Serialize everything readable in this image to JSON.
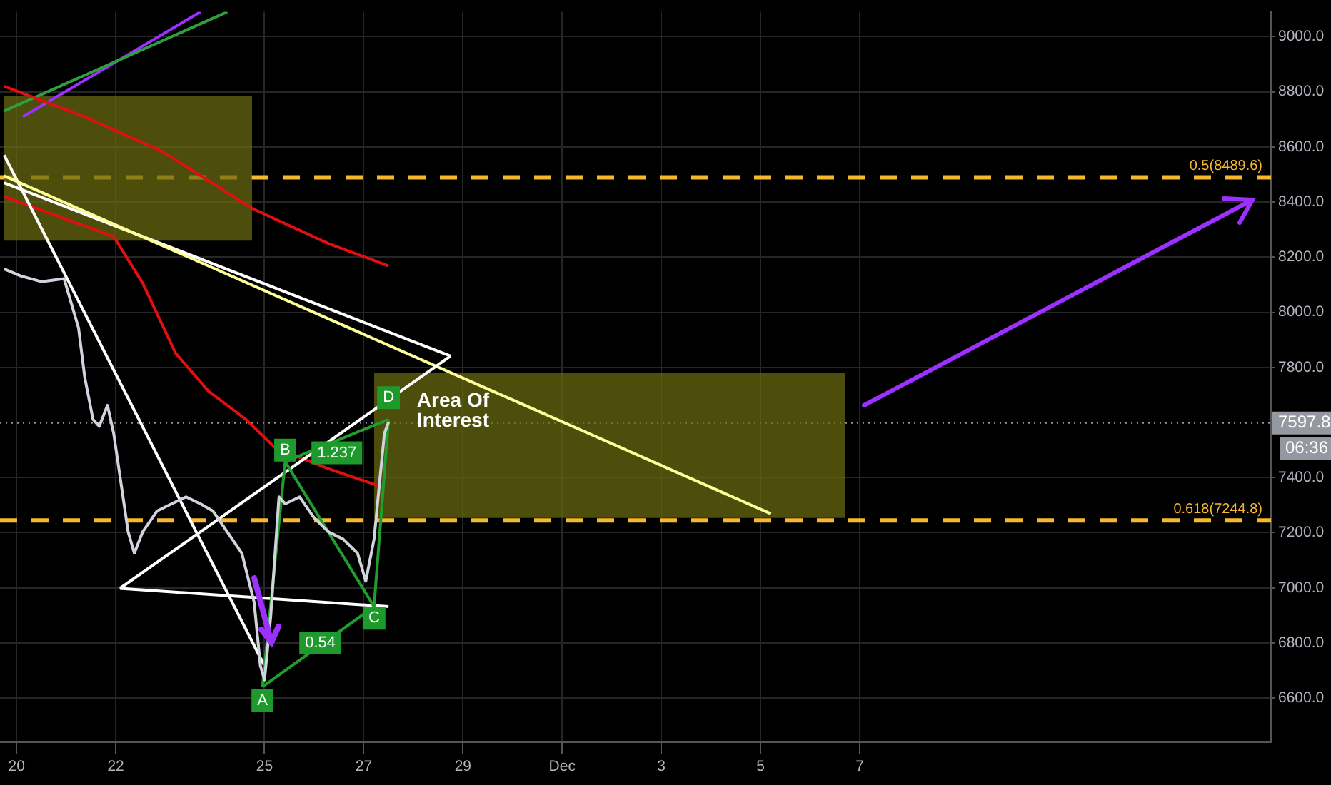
{
  "chart_data": {
    "type": "line",
    "xlim": [
      "--11-19T16:00",
      "--12-15T07:00"
    ],
    "xticks": [
      {
        "value": "--11-20",
        "label": "20"
      },
      {
        "value": "--11-22",
        "label": "22"
      },
      {
        "value": "--11-25",
        "label": "25"
      },
      {
        "value": "--11-27",
        "label": "27"
      },
      {
        "value": "--11-29",
        "label": "29"
      },
      {
        "value": "--12-01",
        "label": "Dec"
      },
      {
        "value": "--12-03",
        "label": "3"
      },
      {
        "value": "--12-05",
        "label": "5"
      },
      {
        "value": "--12-07",
        "label": "7"
      }
    ],
    "ylim": [
      6440,
      9090
    ],
    "yticks": [
      {
        "value": 6600,
        "label": "6600.0"
      },
      {
        "value": 6800,
        "label": "6800.0"
      },
      {
        "value": 7000,
        "label": "7000.0"
      },
      {
        "value": 7200,
        "label": "7200.0"
      },
      {
        "value": 7400,
        "label": "7400.0"
      },
      {
        "value": 7800,
        "label": "7800.0"
      },
      {
        "value": 8000,
        "label": "8000.0"
      },
      {
        "value": 8200,
        "label": "8200.0"
      },
      {
        "value": 8400,
        "label": "8400.0"
      },
      {
        "value": 8600,
        "label": "8600.0"
      },
      {
        "value": 8800,
        "label": "8800.0"
      },
      {
        "value": 9000,
        "label": "9000.0"
      }
    ],
    "grid": true,
    "legend": false,
    "series": [
      {
        "color": "#6b6b10",
        "x": [
          "--11-19T18:00",
          "--11-24T18:00"
        ],
        "values": [
          null,
          null
        ],
        "lower": [
          8260,
          8260
        ],
        "upper": [
          8786,
          8786
        ]
      },
      {
        "color": "#6b6b10",
        "x": [
          "--11-27T05:00",
          "--12-06T17:00"
        ],
        "values": [
          null,
          null
        ],
        "lower": [
          7254,
          7254
        ],
        "upper": [
          7780,
          7780
        ]
      },
      {
        "color": "#9b30ff",
        "x": [
          "--11-20T03:00",
          "--11-23T17:00"
        ],
        "values": [
          8709,
          9090
        ]
      },
      {
        "color": "#2e9e3e",
        "x": [
          "--11-19T18:00",
          "--11-24T06:00"
        ],
        "values": [
          8730,
          9090
        ]
      },
      {
        "color": "#e01010",
        "x": [
          "--11-19T18:00",
          "--11-21T09:00",
          "--11-22T23:00",
          "--11-24T18:00",
          "--11-26T07:00",
          "--11-27T12:00"
        ],
        "values": [
          8820,
          8709,
          8581,
          8377,
          8249,
          8168
        ]
      },
      {
        "color": "#e01010",
        "x": [
          "--11-19T18:00",
          "--11-21T23:00",
          "--11-22T13:00",
          "--11-23T05:00",
          "--11-23T21:00",
          "--11-24T15:00",
          "--11-25T05:00",
          "--11-26T07:00",
          "--11-27T09:00"
        ],
        "values": [
          8420,
          8275,
          8106,
          7851,
          7713,
          7611,
          7509,
          7432,
          7366
        ]
      },
      {
        "color": "#ffffff",
        "x": [
          "--11-19T18:00",
          "--11-25T00:00"
        ],
        "values": [
          8570,
          6717
        ]
      },
      {
        "color": "#ffffff",
        "x": [
          "--11-19T18:00",
          "--11-28T18:00"
        ],
        "values": [
          8470,
          7841
        ]
      },
      {
        "color": "#ffff99",
        "x": [
          "--11-19T18:00",
          "--12-05T05:00"
        ],
        "values": [
          8495,
          7269
        ]
      },
      {
        "color": "#ffffff",
        "x": [
          "--11-22T02:00",
          "--11-28T18:00"
        ],
        "values": [
          6998,
          7841
        ]
      },
      {
        "color": "#ffffff",
        "x": [
          "--11-22T02:00",
          "--11-27T12:00"
        ],
        "values": [
          6998,
          6932
        ]
      },
      {
        "color": "#1f9e2e",
        "x": [
          "--11-24T23:00",
          "--11-25T10:00",
          "--11-27T05:00",
          "--11-27T12:00"
        ],
        "values": [
          6641,
          7458,
          6932,
          7611
        ]
      },
      {
        "color": "#1f9e2e",
        "x": [
          "--11-24T23:00",
          "--11-27T05:00"
        ],
        "values": [
          6641,
          6932
        ]
      },
      {
        "color": "#1f9e2e",
        "x": [
          "--11-25T10:00",
          "--11-27T12:00"
        ],
        "values": [
          7458,
          7611
        ]
      },
      {
        "color": "#d1d4dc",
        "x": [
          "--11-19T18:00",
          "--11-20T02:00",
          "--11-20T12:00",
          "--11-20T23:00",
          "--11-21T02:00",
          "--11-21T06:00",
          "--11-21T09:00",
          "--11-21T13:00",
          "--11-21T16:00",
          "--11-21T20:00",
          "--11-21T23:00",
          "--11-22T02:00",
          "--11-22T06:00",
          "--11-22T09:00",
          "--11-22T13:00",
          "--11-22T20:00",
          "--11-23T03:00",
          "--11-23T10:00",
          "--11-23T17:00",
          "--11-23T23:00",
          "--11-24T06:00",
          "--11-24T13:00",
          "--11-24T19:00",
          "--11-24T22:00",
          "--11-25T00:00",
          "--11-25T03:00",
          "--11-25T07:00",
          "--11-25T10:00",
          "--11-25T17:00",
          "--11-26T00:00",
          "--11-26T07:00",
          "--11-26T14:00",
          "--11-26T21:00",
          "--11-27T01:00",
          "--11-27T05:00",
          "--11-27T08:00",
          "--11-27T10:00",
          "--11-27T12:00"
        ],
        "values": [
          8157,
          8132,
          8111,
          8122,
          8045,
          7943,
          7764,
          7611,
          7586,
          7662,
          7560,
          7407,
          7203,
          7126,
          7203,
          7279,
          7305,
          7330,
          7305,
          7279,
          7203,
          7126,
          6947,
          6717,
          6666,
          6896,
          7330,
          7305,
          7330,
          7254,
          7203,
          7177,
          7126,
          7024,
          7177,
          7407,
          7560,
          7601
        ]
      }
    ],
    "ref_lines": [
      {
        "axis": "y",
        "value": 8489.6,
        "label": "0.5(8489.6)",
        "color": "#f5b82e",
        "line_style": "dashed"
      },
      {
        "axis": "y",
        "value": 7244.8,
        "label": "0.618(7244.8)",
        "color": "#f5b82e",
        "line_style": "dashed"
      },
      {
        "axis": "y",
        "value": 7597.8,
        "label": "7597.8",
        "color": "#9598a1",
        "line_style": "dotted"
      }
    ],
    "annotations": [
      "Area Of Interest",
      {
        "text": "A",
        "x": "--11-24T23:00",
        "y": 6590
      },
      {
        "text": "B",
        "x": "--11-25T10:00",
        "y": 7500
      },
      {
        "text": "C",
        "x": "--11-27T05:00",
        "y": 6890
      },
      {
        "text": "D",
        "x": "--11-27T12:00",
        "y": 7690
      },
      {
        "text": "1.237",
        "x": "--11-26T11:00",
        "y": 7490
      },
      {
        "text": "0.54",
        "x": "--11-26T03:00",
        "y": 6800
      },
      "06:36"
    ]
  }
}
